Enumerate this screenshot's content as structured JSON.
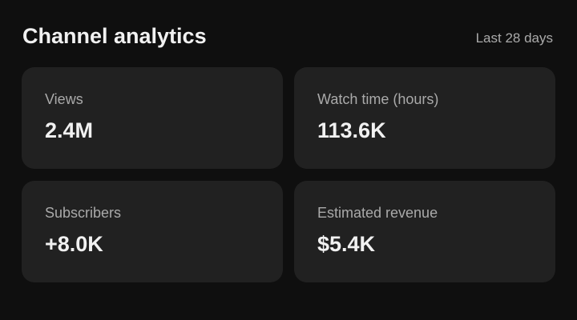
{
  "header": {
    "title": "Channel analytics",
    "range": "Last 28 days"
  },
  "metrics": [
    {
      "label": "Views",
      "value": "2.4M"
    },
    {
      "label": "Watch time (hours)",
      "value": "113.6K"
    },
    {
      "label": "Subscribers",
      "value": "+8.0K"
    },
    {
      "label": "Estimated revenue",
      "value": "$5.4K"
    }
  ],
  "colors": {
    "background": "#0f0f0f",
    "card": "#212121",
    "label": "#aaaaaa",
    "text": "#f1f1f1"
  }
}
